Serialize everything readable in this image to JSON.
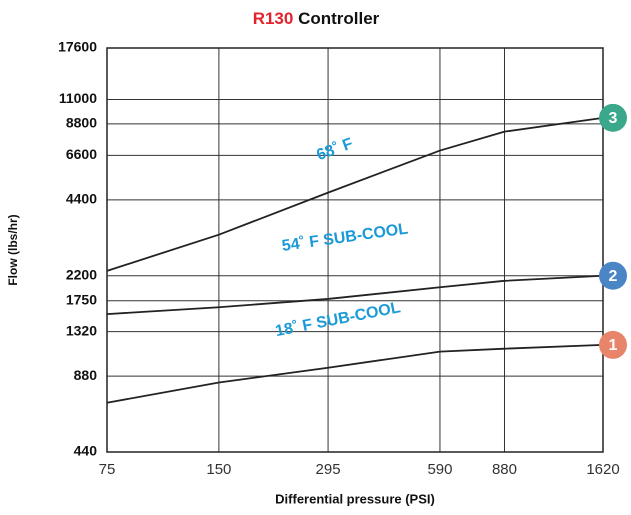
{
  "chart_data": {
    "type": "line",
    "title": {
      "model": "R130",
      "text": "Controller"
    },
    "x_label": "Differential pressure (PSI)",
    "y_label": "Flow (lbs/hr)",
    "x": [
      75,
      150,
      295,
      590,
      880,
      1620
    ],
    "series": [
      {
        "name": "68˚ F",
        "marker": "3",
        "color": "#3aa88a",
        "values": [
          2300,
          3200,
          4700,
          6900,
          8200,
          9300
        ]
      },
      {
        "name": "54˚ F SUB-COOL",
        "marker": "2",
        "color": "#4a86c5",
        "values": [
          1550,
          1650,
          1780,
          1980,
          2100,
          2200
        ]
      },
      {
        "name": "18˚ F SUB-COOL",
        "marker": "1",
        "color": "#e8846a",
        "values": [
          690,
          830,
          950,
          1100,
          1130,
          1170
        ]
      }
    ],
    "xlim": [
      75,
      1620
    ],
    "xticks": [
      75,
      150,
      295,
      590,
      880,
      1620
    ],
    "ylim": [
      440,
      17600
    ],
    "yticks": [
      440,
      880,
      1320,
      1750,
      2200,
      4400,
      6600,
      8800,
      11000,
      17600
    ],
    "xscale": "log",
    "yscale": "log",
    "grid": true,
    "line_color": "#222222",
    "label_color": "#1a9ad6"
  }
}
